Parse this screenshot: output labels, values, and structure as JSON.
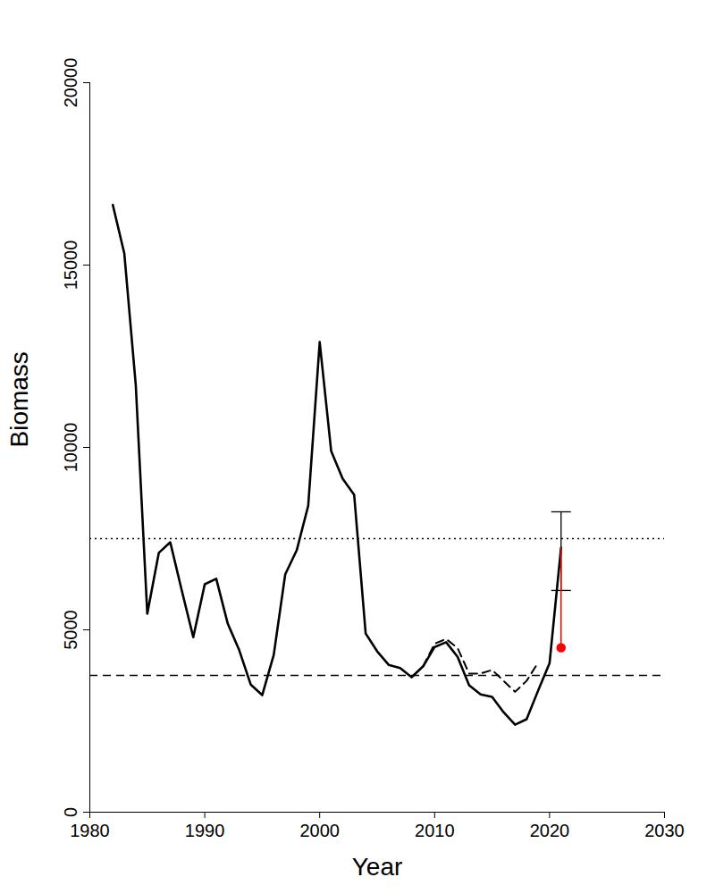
{
  "chart_data": {
    "type": "line",
    "x_label": "Year",
    "y_label": "Biomass",
    "x": [
      1982,
      1983,
      1984,
      1985,
      1986,
      1987,
      1988,
      1989,
      1990,
      1991,
      1992,
      1993,
      1994,
      1995,
      1996,
      1997,
      1998,
      1999,
      2000,
      2001,
      2002,
      2003,
      2004,
      2005,
      2006,
      2007,
      2008,
      2009,
      2010,
      2011,
      2012,
      2013,
      2014,
      2015,
      2016,
      2017,
      2018,
      2019,
      2020,
      2021
    ],
    "series": [
      {
        "color": "black",
        "line_style": "solid",
        "values": [
          16650,
          15320,
          11700,
          5440,
          7110,
          7400,
          6080,
          4800,
          6250,
          6400,
          5170,
          4440,
          3500,
          3210,
          4310,
          6520,
          7180,
          8400,
          12890,
          9900,
          9140,
          8700,
          4900,
          4410,
          4040,
          3950,
          3700,
          4000,
          4530,
          4660,
          4260,
          3480,
          3230,
          3160,
          2740,
          2400,
          2550,
          3330,
          4090,
          7250
        ]
      },
      {
        "color": "black",
        "line_style": "dashed",
        "values": [
          null,
          null,
          null,
          null,
          null,
          null,
          null,
          null,
          null,
          null,
          null,
          null,
          null,
          null,
          null,
          null,
          null,
          null,
          null,
          null,
          null,
          null,
          null,
          null,
          null,
          null,
          null,
          4000,
          4620,
          4750,
          4500,
          3800,
          3800,
          3900,
          3600,
          3300,
          3600,
          4100,
          null,
          null
        ]
      }
    ],
    "hlines": [
      {
        "value": 7500,
        "color": "black",
        "line_style": "dotted"
      },
      {
        "value": 3750,
        "color": "black",
        "line_style": "dashed"
      }
    ],
    "points": [
      {
        "x": 2021,
        "y": 4510,
        "y_end": 7250,
        "color": "red",
        "marker": "circle"
      }
    ],
    "error_bars": [
      {
        "x": 2021,
        "low": 6080,
        "high": 8235,
        "color": "black"
      }
    ],
    "xlim": [
      1980,
      2030
    ],
    "ylim": [
      0,
      20000
    ],
    "xticks": [
      1980,
      1990,
      2000,
      2010,
      2020,
      2030
    ],
    "yticks": [
      0,
      5000,
      10000,
      15000,
      20000
    ],
    "grid": false
  }
}
